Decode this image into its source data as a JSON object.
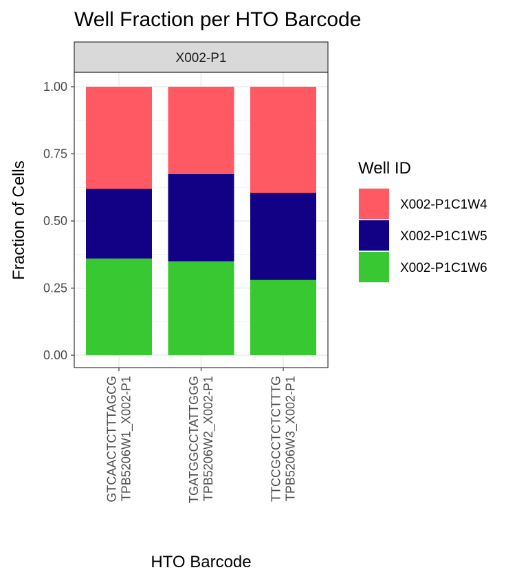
{
  "chart_data": {
    "type": "bar",
    "stacked": true,
    "title": "Well Fraction per HTO Barcode",
    "xlabel": "HTO Barcode",
    "ylabel": "Fraction of Cells",
    "facet": "X002-P1",
    "ylim": [
      0,
      1
    ],
    "yticks": [
      "0.00",
      "0.25",
      "0.50",
      "0.75",
      "1.00"
    ],
    "categories": [
      [
        "GTCAACTCTTTAGCG",
        "TPB5206W1_X002-P1"
      ],
      [
        "TGATGGCCTATTGGG",
        "TPB5206W2_X002-P1"
      ],
      [
        "TTCCGCCTCTCTTTG",
        "TPB5206W3_X002-P1"
      ]
    ],
    "legend": {
      "title": "Well ID",
      "position": "right"
    },
    "grid": true,
    "series": [
      {
        "name": "X002-P1C1W4",
        "color": "#FF5A63",
        "values": [
          0.38,
          0.325,
          0.395
        ]
      },
      {
        "name": "X002-P1C1W5",
        "color": "#120085",
        "values": [
          0.26,
          0.325,
          0.325
        ]
      },
      {
        "name": "X002-P1C1W6",
        "color": "#38C832",
        "values": [
          0.36,
          0.35,
          0.28
        ]
      }
    ]
  }
}
